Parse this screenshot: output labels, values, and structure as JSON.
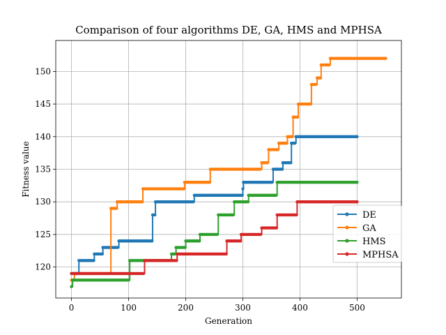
{
  "chart_data": {
    "type": "line",
    "title": "Comparison of four algorithms DE, GA, HMS and MPHSA",
    "xlabel": "Generation",
    "ylabel": "Fitness value",
    "xlim": [
      -27.5,
      577.5
    ],
    "ylim": [
      115.25,
      154.75
    ],
    "xticks": [
      0,
      100,
      200,
      300,
      400,
      500
    ],
    "yticks": [
      120,
      125,
      130,
      135,
      140,
      145,
      150
    ],
    "grid": true,
    "legend_position": "center-right",
    "series": [
      {
        "name": "DE",
        "color": "#1f77b4",
        "steps": [
          [
            0,
            119
          ],
          [
            13,
            121
          ],
          [
            40,
            122
          ],
          [
            55,
            123
          ],
          [
            83,
            124
          ],
          [
            142,
            128
          ],
          [
            147,
            130
          ],
          [
            215,
            131
          ],
          [
            300,
            132
          ],
          [
            301,
            133
          ],
          [
            353,
            135
          ],
          [
            370,
            136
          ],
          [
            385,
            139
          ],
          [
            393,
            140
          ],
          [
            500,
            140
          ]
        ]
      },
      {
        "name": "GA",
        "color": "#ff7f0e",
        "steps": [
          [
            0,
            118
          ],
          [
            5,
            119
          ],
          [
            69,
            129
          ],
          [
            80,
            130
          ],
          [
            125,
            132
          ],
          [
            198,
            133
          ],
          [
            243,
            135
          ],
          [
            333,
            136
          ],
          [
            345,
            138
          ],
          [
            363,
            139
          ],
          [
            378,
            140
          ],
          [
            388,
            143
          ],
          [
            397,
            145
          ],
          [
            420,
            148
          ],
          [
            430,
            149
          ],
          [
            437,
            151
          ],
          [
            453,
            152
          ],
          [
            550,
            152
          ]
        ]
      },
      {
        "name": "HMS",
        "color": "#2ca02c",
        "steps": [
          [
            0,
            117
          ],
          [
            2,
            118
          ],
          [
            102,
            121
          ],
          [
            127,
            121
          ],
          [
            175,
            122
          ],
          [
            183,
            123
          ],
          [
            200,
            124
          ],
          [
            225,
            125
          ],
          [
            257,
            128
          ],
          [
            285,
            130
          ],
          [
            310,
            131
          ],
          [
            360,
            133
          ],
          [
            500,
            133
          ]
        ]
      },
      {
        "name": "MPHSA",
        "color": "#d62728",
        "steps": [
          [
            0,
            119
          ],
          [
            128,
            121
          ],
          [
            185,
            122
          ],
          [
            272,
            124
          ],
          [
            297,
            125
          ],
          [
            333,
            126
          ],
          [
            360,
            128
          ],
          [
            395,
            130
          ],
          [
            500,
            130
          ]
        ]
      }
    ]
  }
}
